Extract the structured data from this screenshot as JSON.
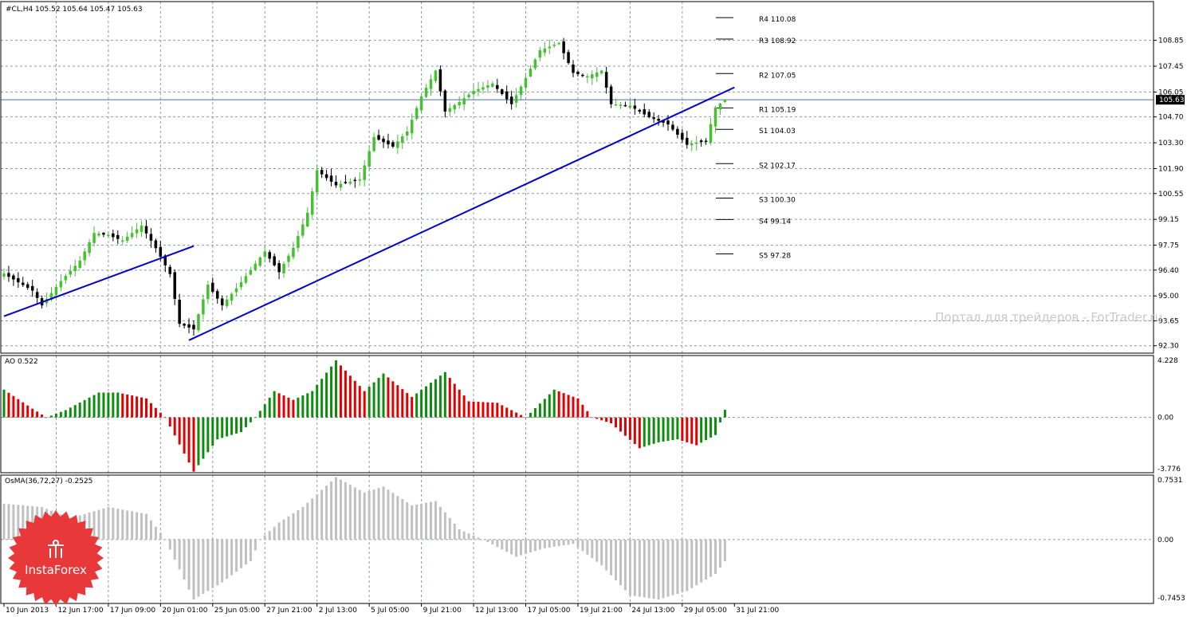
{
  "chart_data": [
    {
      "type": "candlestick",
      "title": "#CL,H4  105.52 105.64 105.47 105.63",
      "symbol": "#CL",
      "timeframe": "H4",
      "ohlc_last": {
        "open": 105.52,
        "high": 105.64,
        "low": 105.47,
        "close": 105.63
      },
      "current_price": 105.63,
      "current_price_label": "105.63",
      "ylim": [
        91.9,
        110.95
      ],
      "y_ticks": [
        108.85,
        107.45,
        106.05,
        104.7,
        103.3,
        101.9,
        100.55,
        99.15,
        97.75,
        96.4,
        95.0,
        93.65,
        92.3
      ],
      "y_tick_labels": [
        "108.85",
        "107.45",
        "106.05",
        "104.70",
        "103.30",
        "101.90",
        "100.55",
        "99.15",
        "97.75",
        "96.40",
        "95.00",
        "93.65",
        "92.30"
      ],
      "x_tick_labels": [
        "10 Jun 2013",
        "12 Jun 17:00",
        "17 Jun 09:00",
        "20 Jun 01:00",
        "25 Jun 05:00",
        "27 Jun 21:00",
        "2 Jul 13:00",
        "5 Jul 05:00",
        "9 Jul 21:00",
        "12 Jul 13:00",
        "17 Jul 05:00",
        "19 Jul 21:00",
        "24 Jul 13:00",
        "29 Jul 05:00",
        "31 Jul 21:00"
      ],
      "bull_color": "#44c030",
      "bear_color": "#000000",
      "pivot_levels": [
        {
          "label": "R4 110.08",
          "value": 110.08
        },
        {
          "label": "R3 108.92",
          "value": 108.92
        },
        {
          "label": "R2 107.05",
          "value": 107.05
        },
        {
          "label": "R1 105.19",
          "value": 105.19
        },
        {
          "label": "S1 104.03",
          "value": 104.03
        },
        {
          "label": "S2 102.17",
          "value": 102.17
        },
        {
          "label": "S3 100.30",
          "value": 100.3
        },
        {
          "label": "S4 99.14",
          "value": 99.14
        },
        {
          "label": "S5 97.28",
          "value": 97.28
        }
      ],
      "trend_lines": [
        {
          "x": [
            0,
            40
          ],
          "y": [
            93.9,
            97.7
          ]
        },
        {
          "x": [
            39,
            154
          ],
          "y": [
            92.6,
            106.3
          ]
        }
      ],
      "trend_color": "#0000cc",
      "anchors": [
        {
          "x": 0,
          "y": 96.2
        },
        {
          "x": 6,
          "y": 95.3
        },
        {
          "x": 8,
          "y": 94.5
        },
        {
          "x": 12,
          "y": 95.8
        },
        {
          "x": 16,
          "y": 96.9
        },
        {
          "x": 19,
          "y": 98.4
        },
        {
          "x": 22,
          "y": 98.3
        },
        {
          "x": 25,
          "y": 98.0
        },
        {
          "x": 29,
          "y": 98.8
        },
        {
          "x": 32,
          "y": 97.6
        },
        {
          "x": 35,
          "y": 96.2
        },
        {
          "x": 37,
          "y": 93.5
        },
        {
          "x": 40,
          "y": 93.2
        },
        {
          "x": 43,
          "y": 95.6
        },
        {
          "x": 46,
          "y": 94.5
        },
        {
          "x": 49,
          "y": 95.4
        },
        {
          "x": 52,
          "y": 96.4
        },
        {
          "x": 55,
          "y": 97.4
        },
        {
          "x": 58,
          "y": 96.3
        },
        {
          "x": 61,
          "y": 97.6
        },
        {
          "x": 64,
          "y": 99.5
        },
        {
          "x": 66,
          "y": 101.8
        },
        {
          "x": 70,
          "y": 101.0
        },
        {
          "x": 75,
          "y": 101.3
        },
        {
          "x": 78,
          "y": 103.6
        },
        {
          "x": 82,
          "y": 103.1
        },
        {
          "x": 85,
          "y": 103.9
        },
        {
          "x": 88,
          "y": 105.8
        },
        {
          "x": 91,
          "y": 107.2
        },
        {
          "x": 93,
          "y": 105.0
        },
        {
          "x": 96,
          "y": 105.5
        },
        {
          "x": 99,
          "y": 106.1
        },
        {
          "x": 103,
          "y": 106.5
        },
        {
          "x": 107,
          "y": 105.4
        },
        {
          "x": 110,
          "y": 106.8
        },
        {
          "x": 113,
          "y": 108.3
        },
        {
          "x": 117,
          "y": 108.7
        },
        {
          "x": 120,
          "y": 107.1
        },
        {
          "x": 123,
          "y": 106.9
        },
        {
          "x": 126,
          "y": 107.2
        },
        {
          "x": 128,
          "y": 105.4
        },
        {
          "x": 132,
          "y": 105.3
        },
        {
          "x": 136,
          "y": 104.7
        },
        {
          "x": 140,
          "y": 104.3
        },
        {
          "x": 144,
          "y": 103.2
        },
        {
          "x": 148,
          "y": 103.4
        },
        {
          "x": 150,
          "y": 105.2
        },
        {
          "x": 152,
          "y": 105.63
        }
      ]
    },
    {
      "type": "histogram",
      "title": "AO 0.522",
      "indicator": "AO",
      "value": 0.522,
      "ylim": [
        -3.776,
        4.228
      ],
      "y_ticks": [
        4.228,
        0.0,
        -3.776
      ],
      "y_tick_labels": [
        "4.228",
        "0.00",
        "-3.776"
      ],
      "rising_color": "#0e8c0e",
      "falling_color": "#e00000",
      "anchors": [
        {
          "x": 0,
          "y": 1.9
        },
        {
          "x": 6,
          "y": 0.6
        },
        {
          "x": 9,
          "y": 0.0
        },
        {
          "x": 13,
          "y": 0.5
        },
        {
          "x": 20,
          "y": 1.7
        },
        {
          "x": 24,
          "y": 1.7
        },
        {
          "x": 30,
          "y": 1.3
        },
        {
          "x": 34,
          "y": 0.0
        },
        {
          "x": 40,
          "y": -3.7
        },
        {
          "x": 45,
          "y": -1.5
        },
        {
          "x": 50,
          "y": -1.0
        },
        {
          "x": 53,
          "y": 0.0
        },
        {
          "x": 57,
          "y": 1.8
        },
        {
          "x": 61,
          "y": 1.2
        },
        {
          "x": 65,
          "y": 1.8
        },
        {
          "x": 70,
          "y": 3.9
        },
        {
          "x": 76,
          "y": 1.8
        },
        {
          "x": 80,
          "y": 3.0
        },
        {
          "x": 86,
          "y": 1.4
        },
        {
          "x": 93,
          "y": 3.1
        },
        {
          "x": 98,
          "y": 1.1
        },
        {
          "x": 104,
          "y": 1.0
        },
        {
          "x": 110,
          "y": 0.0
        },
        {
          "x": 116,
          "y": 1.9
        },
        {
          "x": 121,
          "y": 1.3
        },
        {
          "x": 124,
          "y": 0.0
        },
        {
          "x": 128,
          "y": -0.4
        },
        {
          "x": 134,
          "y": -2.1
        },
        {
          "x": 138,
          "y": -1.7
        },
        {
          "x": 142,
          "y": -1.5
        },
        {
          "x": 146,
          "y": -1.9
        },
        {
          "x": 150,
          "y": -1.2
        },
        {
          "x": 152,
          "y": 0.522
        }
      ]
    },
    {
      "type": "histogram",
      "title": "OsMA(36,72,27) -0.2525",
      "indicator": "OsMA",
      "params": [
        36,
        72,
        27
      ],
      "value": -0.2525,
      "ylim": [
        -0.7453,
        0.7531
      ],
      "y_ticks": [
        0.7531,
        0.0,
        -0.7453
      ],
      "y_tick_labels": [
        "0.7531",
        "0.00",
        "-0.7453"
      ],
      "bar_color": "#c0c0c0",
      "anchors": [
        {
          "x": 0,
          "y": 0.42
        },
        {
          "x": 8,
          "y": 0.38
        },
        {
          "x": 14,
          "y": 0.25
        },
        {
          "x": 22,
          "y": 0.38
        },
        {
          "x": 30,
          "y": 0.3
        },
        {
          "x": 34,
          "y": 0.0
        },
        {
          "x": 40,
          "y": -0.7
        },
        {
          "x": 46,
          "y": -0.5
        },
        {
          "x": 52,
          "y": -0.25
        },
        {
          "x": 54,
          "y": 0.0
        },
        {
          "x": 58,
          "y": 0.2
        },
        {
          "x": 63,
          "y": 0.38
        },
        {
          "x": 70,
          "y": 0.73
        },
        {
          "x": 76,
          "y": 0.55
        },
        {
          "x": 80,
          "y": 0.62
        },
        {
          "x": 86,
          "y": 0.4
        },
        {
          "x": 91,
          "y": 0.45
        },
        {
          "x": 96,
          "y": 0.12
        },
        {
          "x": 101,
          "y": 0.0
        },
        {
          "x": 108,
          "y": -0.2
        },
        {
          "x": 114,
          "y": -0.1
        },
        {
          "x": 120,
          "y": -0.05
        },
        {
          "x": 126,
          "y": -0.3
        },
        {
          "x": 132,
          "y": -0.65
        },
        {
          "x": 138,
          "y": -0.7
        },
        {
          "x": 144,
          "y": -0.6
        },
        {
          "x": 150,
          "y": -0.4
        },
        {
          "x": 152,
          "y": -0.2525
        }
      ]
    }
  ],
  "watermark": "Портал для трейдеров - ForTrader.ru",
  "logo_text": "InstaForex"
}
